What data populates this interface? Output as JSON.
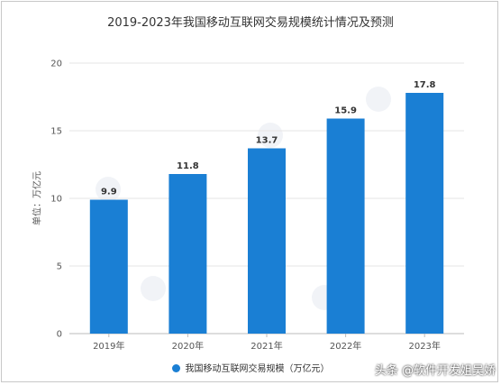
{
  "chart_data": {
    "type": "bar",
    "title": "2019-2023年我国移动互联网交易规模统计情况及预测",
    "ylabel": "单位：万亿元",
    "xlabel": "",
    "categories": [
      "2019年",
      "2020年",
      "2021年",
      "2022年",
      "2023年"
    ],
    "series": [
      {
        "name": "我国移动互联网交易规模（万亿元）",
        "values": [
          9.9,
          11.8,
          13.7,
          15.9,
          17.8
        ]
      }
    ],
    "ylim": [
      0,
      20
    ],
    "yticks": [
      0,
      5,
      10,
      15,
      20
    ],
    "value_labels": [
      "9.9",
      "11.8",
      "13.7",
      "15.9",
      "17.8"
    ],
    "grid": true,
    "legend_position": "bottom",
    "bar_color": "#1a7fd4"
  },
  "watermark": "头条 @软件开发姐吴娇"
}
